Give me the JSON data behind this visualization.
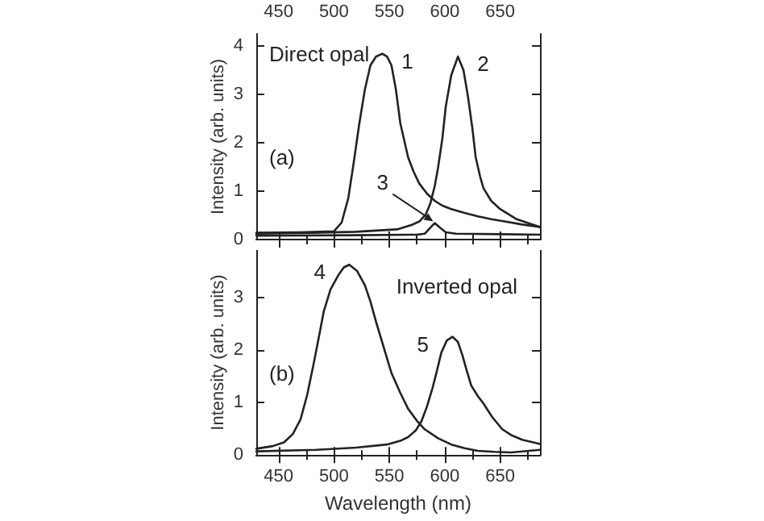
{
  "chart_data": [
    {
      "type": "line",
      "ylabel": "Intensity (arb. units)",
      "annotations": [
        "Direct opal",
        "(a)"
      ],
      "xlim": [
        430,
        686
      ],
      "xticks": [
        450,
        500,
        550,
        600,
        650
      ],
      "ylim": [
        0,
        4.25
      ],
      "yticks": [
        0,
        1,
        2,
        3,
        4
      ],
      "grid": false,
      "legend": false,
      "marker": "none",
      "line_style": "solid",
      "series": [
        {
          "name": "1",
          "color": "#222222",
          "x": [
            430,
            470,
            500,
            507,
            513,
            518,
            523,
            528,
            533,
            538,
            543.7,
            548,
            552,
            556,
            560,
            567,
            572,
            577,
            584,
            591,
            598,
            606,
            618,
            630,
            642,
            655,
            670,
            686
          ],
          "values": [
            0.14,
            0.15,
            0.17,
            0.35,
            0.85,
            1.6,
            2.4,
            3.1,
            3.6,
            3.78,
            3.84,
            3.78,
            3.6,
            3.1,
            2.4,
            1.7,
            1.4,
            1.16,
            0.95,
            0.8,
            0.7,
            0.63,
            0.55,
            0.48,
            0.42,
            0.37,
            0.31,
            0.26
          ]
        },
        {
          "name": "2",
          "color": "#222222",
          "x": [
            430,
            480,
            520,
            557,
            570,
            577,
            583,
            587,
            591,
            594,
            598,
            601,
            606,
            612,
            617,
            621,
            625,
            628,
            632,
            635,
            642,
            650,
            665,
            686
          ],
          "values": [
            0.12,
            0.14,
            0.16,
            0.21,
            0.3,
            0.37,
            0.52,
            0.74,
            1.1,
            1.48,
            2.1,
            2.75,
            3.4,
            3.78,
            3.5,
            2.96,
            2.3,
            1.7,
            1.3,
            1.06,
            0.8,
            0.63,
            0.42,
            0.26
          ]
        },
        {
          "name": "3",
          "color": "#222222",
          "x": [
            430,
            520,
            575,
            582,
            586,
            591,
            596,
            601,
            610,
            650,
            686
          ],
          "values": [
            0.08,
            0.09,
            0.1,
            0.12,
            0.22,
            0.34,
            0.24,
            0.15,
            0.12,
            0.11,
            0.1
          ]
        }
      ]
    },
    {
      "type": "line",
      "xlabel": "Wavelength (nm)",
      "ylabel": "Intensity (arb. units)",
      "annotations": [
        "Inverted opal",
        "(b)"
      ],
      "xlim": [
        430,
        686
      ],
      "xticks": [
        450,
        500,
        550,
        600,
        650
      ],
      "ylim": [
        0,
        3.9
      ],
      "yticks": [
        0,
        1,
        2,
        3
      ],
      "grid": false,
      "legend": false,
      "marker": "none",
      "line_style": "solid",
      "series": [
        {
          "name": "4",
          "color": "#222222",
          "x": [
            430,
            445,
            455,
            463,
            470,
            476,
            482,
            487,
            491,
            497,
            504,
            509,
            514,
            521,
            528,
            533,
            538,
            545,
            552,
            560,
            567,
            575,
            582,
            594,
            606,
            618,
            630,
            645,
            660,
            686
          ],
          "values": [
            0.12,
            0.17,
            0.24,
            0.4,
            0.68,
            1.15,
            1.76,
            2.3,
            2.74,
            3.15,
            3.42,
            3.57,
            3.62,
            3.5,
            3.23,
            2.92,
            2.54,
            2.05,
            1.56,
            1.18,
            0.88,
            0.65,
            0.49,
            0.32,
            0.2,
            0.13,
            0.08,
            0.06,
            0.05,
            0.1
          ]
        },
        {
          "name": "5",
          "color": "#222222",
          "x": [
            430,
            484,
            520,
            548,
            560,
            567,
            574,
            579,
            584,
            589,
            593,
            597,
            602,
            607,
            612,
            616,
            620,
            624,
            630,
            635,
            643,
            652,
            660,
            670,
            686
          ],
          "values": [
            0.07,
            0.1,
            0.14,
            0.2,
            0.27,
            0.34,
            0.47,
            0.64,
            0.92,
            1.27,
            1.6,
            1.95,
            2.18,
            2.25,
            2.15,
            1.9,
            1.6,
            1.32,
            1.12,
            0.98,
            0.72,
            0.49,
            0.38,
            0.29,
            0.21
          ]
        }
      ]
    }
  ]
}
